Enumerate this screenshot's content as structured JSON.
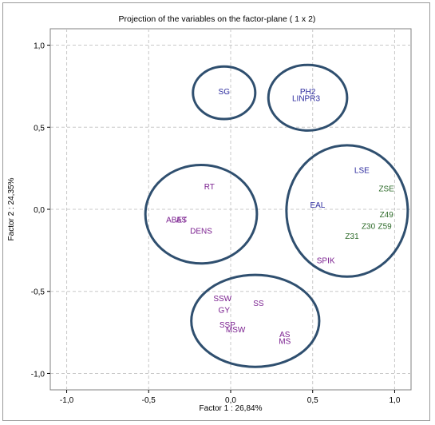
{
  "chart_data": {
    "type": "scatter",
    "title": "Projection of the variables on the factor-plane ( 1 x 2)",
    "xlabel": "Factor 1 : 26,84%",
    "ylabel": "Factor 2 : 24,35%",
    "xlim": [
      -1.1,
      1.1
    ],
    "ylim": [
      -1.1,
      1.1
    ],
    "xticks": [
      -1.0,
      -0.5,
      0.0,
      0.5,
      1.0
    ],
    "yticks": [
      -1.0,
      -0.5,
      0.0,
      0.5,
      1.0
    ],
    "xtick_labels": [
      "-1,0",
      "-0,5",
      "0,0",
      "0,5",
      "1,0"
    ],
    "ytick_labels": [
      "-1,0",
      "-0,5",
      "0,0",
      "0,5",
      "1,0"
    ],
    "grid": true,
    "colors": {
      "purple": "#7a1f8f",
      "blue": "#2b2a9e",
      "green": "#2e6b2a",
      "ring": "#2f4f6f",
      "grid": "#c8c8c8"
    },
    "points": [
      {
        "label": "SG",
        "x": -0.04,
        "y": 0.72,
        "color": "blue"
      },
      {
        "label": "PH2",
        "x": 0.47,
        "y": 0.72,
        "color": "blue"
      },
      {
        "label": "LINPR3",
        "x": 0.46,
        "y": 0.68,
        "color": "blue"
      },
      {
        "label": "LSE",
        "x": 0.8,
        "y": 0.24,
        "color": "blue"
      },
      {
        "label": "ZSE",
        "x": 0.95,
        "y": 0.13,
        "color": "green"
      },
      {
        "label": "EAL",
        "x": 0.53,
        "y": 0.03,
        "color": "blue"
      },
      {
        "label": "Z49",
        "x": 0.95,
        "y": -0.03,
        "color": "green"
      },
      {
        "label": "Z30",
        "x": 0.84,
        "y": -0.1,
        "color": "green"
      },
      {
        "label": "Z59",
        "x": 0.94,
        "y": -0.1,
        "color": "green"
      },
      {
        "label": "Z31",
        "x": 0.74,
        "y": -0.16,
        "color": "green"
      },
      {
        "label": "SPIK",
        "x": 0.58,
        "y": -0.31,
        "color": "purple"
      },
      {
        "label": "RT",
        "x": -0.13,
        "y": 0.14,
        "color": "purple"
      },
      {
        "label": "ABET",
        "x": -0.33,
        "y": -0.06,
        "color": "purple"
      },
      {
        "label": "AS",
        "x": -0.3,
        "y": -0.06,
        "color": "purple"
      },
      {
        "label": "DENS",
        "x": -0.18,
        "y": -0.13,
        "color": "purple"
      },
      {
        "label": "SSW",
        "x": -0.05,
        "y": -0.54,
        "color": "purple"
      },
      {
        "label": "SS",
        "x": 0.17,
        "y": -0.57,
        "color": "purple"
      },
      {
        "label": "GY",
        "x": -0.04,
        "y": -0.61,
        "color": "purple"
      },
      {
        "label": "SSP",
        "x": -0.02,
        "y": -0.7,
        "color": "purple"
      },
      {
        "label": "MSW",
        "x": 0.03,
        "y": -0.73,
        "color": "purple"
      },
      {
        "label": "AS",
        "x": 0.33,
        "y": -0.76,
        "color": "purple"
      },
      {
        "label": "MS",
        "x": 0.33,
        "y": -0.8,
        "color": "purple"
      }
    ],
    "groups": [
      {
        "cx": -0.04,
        "cy": 0.71,
        "rx": 0.19,
        "ry": 0.16
      },
      {
        "cx": 0.47,
        "cy": 0.68,
        "rx": 0.24,
        "ry": 0.2
      },
      {
        "cx": -0.18,
        "cy": -0.03,
        "rx": 0.34,
        "ry": 0.3
      },
      {
        "cx": 0.71,
        "cy": -0.01,
        "rx": 0.37,
        "ry": 0.4
      },
      {
        "cx": 0.15,
        "cy": -0.68,
        "rx": 0.39,
        "ry": 0.28
      }
    ]
  }
}
